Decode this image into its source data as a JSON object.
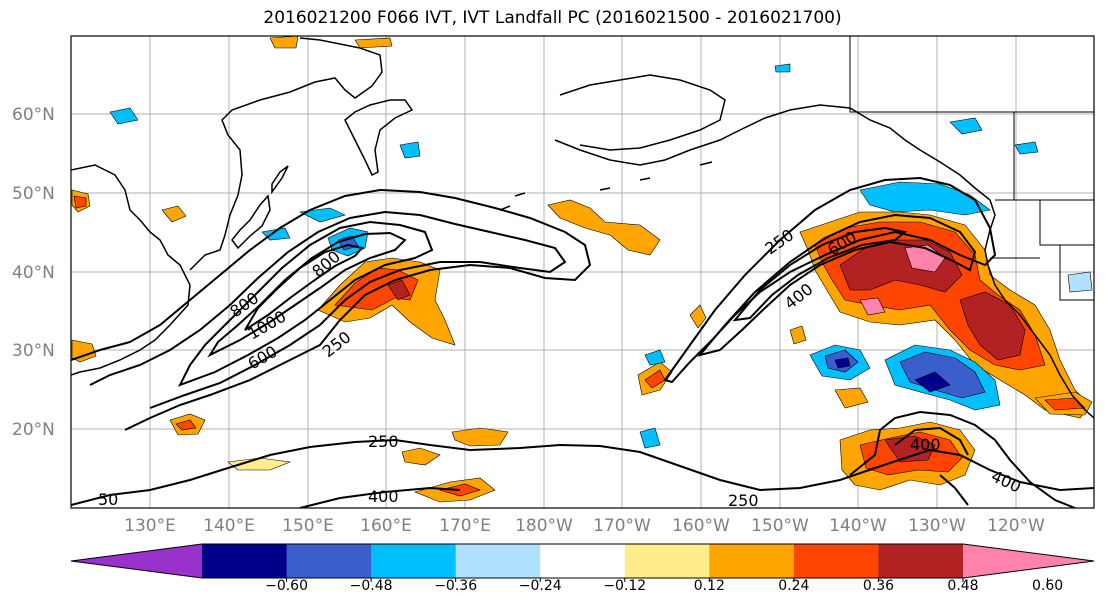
{
  "title": "2016021200 F066 IVT, IVT Landfall PC (2016021500 - 2016021700)",
  "lat_labels": [
    "60°N",
    "50°N",
    "40°N",
    "30°N",
    "20°N"
  ],
  "lon_labels": [
    "130°E",
    "140°E",
    "150°E",
    "160°E",
    "170°E",
    "180°W",
    "170°W",
    "160°W",
    "150°W",
    "140°W",
    "130°W",
    "120°W"
  ],
  "contour_labels": {
    "c1000": "1000",
    "c800": "800",
    "c600a": "600",
    "c250a": "250",
    "c250b": "250",
    "c250c": "250",
    "c600b": "600",
    "c400a": "400",
    "c250d": "250",
    "c400b": "400",
    "c400c": "400",
    "c400d": "400",
    "c250e": "250",
    "c800w": "800",
    "c50": "50"
  },
  "colorbar": {
    "colors": [
      "#9932cc",
      "#00008b",
      "#3a5fcd",
      "#00bfff",
      "#b0e2ff",
      "#ffffff",
      "#ffec8b",
      "#ffa500",
      "#ff4500",
      "#b22222",
      "#ff82ab"
    ],
    "ticks": [
      "−0.60",
      "−0.48",
      "−0.36",
      "−0.24",
      "−0.12",
      "0.12",
      "0.24",
      "0.36",
      "0.48",
      "0.60"
    ]
  }
}
